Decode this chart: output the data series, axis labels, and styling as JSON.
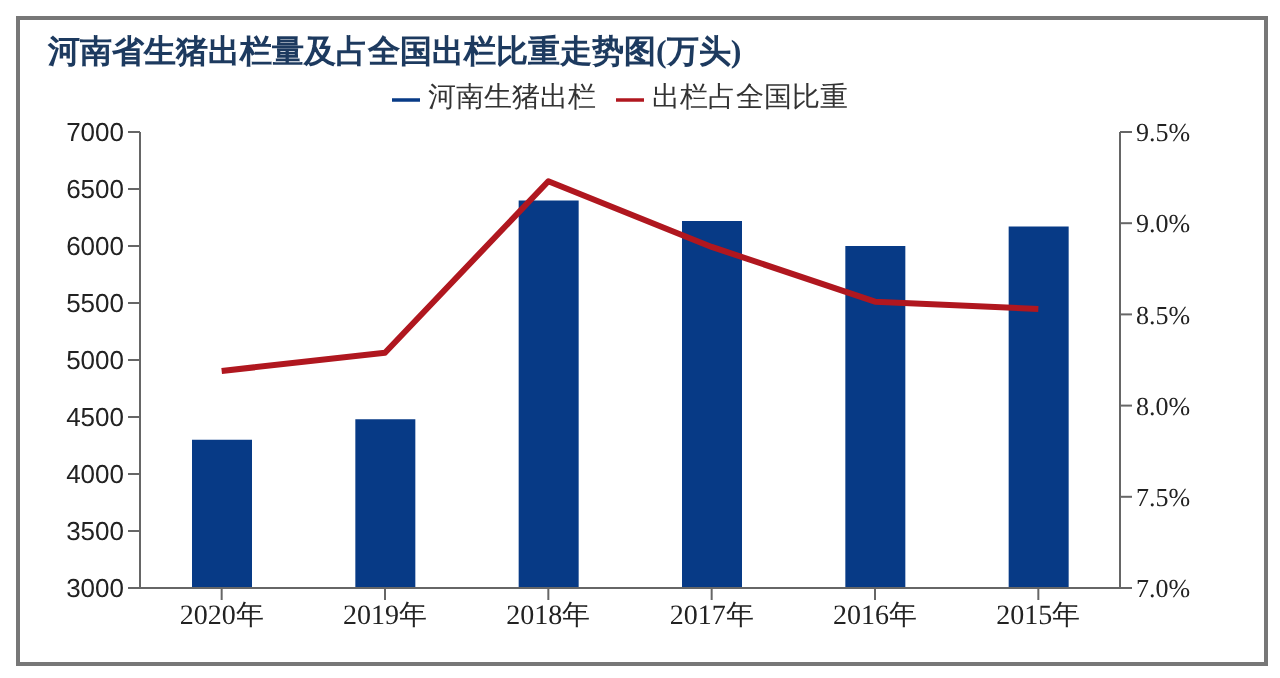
{
  "chart_data": {
    "type": "bar",
    "title": "河南省生猪出栏量及占全国出栏比重走势图(万头)",
    "categories": [
      "2020年",
      "2019年",
      "2018年",
      "2017年",
      "2016年",
      "2015年"
    ],
    "series": [
      {
        "name": "河南生猪出栏",
        "color": "#073a86",
        "values": [
          4300,
          4480,
          6400,
          6220,
          6000,
          6170
        ]
      },
      {
        "name": "出栏占全国比重",
        "type": "line",
        "axis": "y2",
        "color": "#b0171f",
        "values": [
          8.19,
          8.29,
          9.23,
          8.87,
          8.57,
          8.53
        ]
      }
    ],
    "ylim": [
      3000,
      7000
    ],
    "yticks": [
      3000,
      3500,
      4000,
      4500,
      5000,
      5500,
      6000,
      6500,
      7000
    ],
    "y2lim": [
      7.0,
      9.5
    ],
    "y2ticks": [
      {
        "value": 7.0,
        "label": "7.0%"
      },
      {
        "value": 7.5,
        "label": "7.5%"
      },
      {
        "value": 8.0,
        "label": "8.0%"
      },
      {
        "value": 8.5,
        "label": "8.5%"
      },
      {
        "value": 9.0,
        "label": "9.0%"
      },
      {
        "value": 9.5,
        "label": "9.5%"
      }
    ],
    "legend": "top",
    "marker": "none"
  }
}
